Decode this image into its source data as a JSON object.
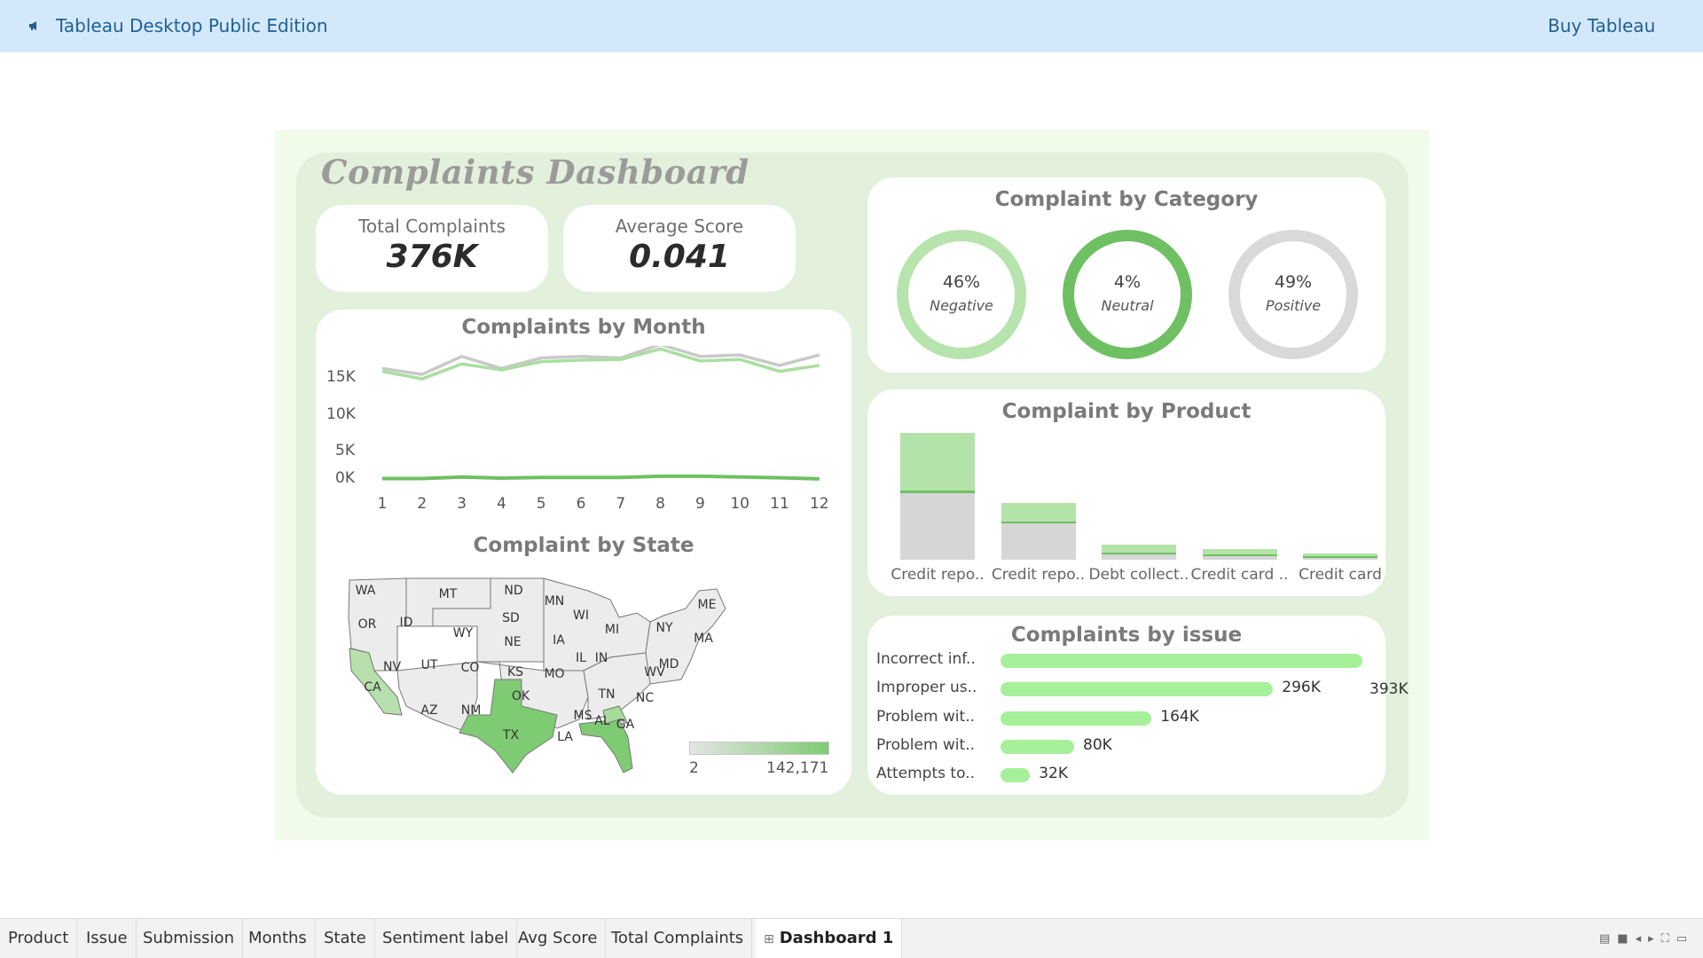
{
  "topbar": {
    "app_icon": "megaphone-icon",
    "title": "Tableau Desktop Public Edition",
    "buy_label": "Buy Tableau"
  },
  "dashboard": {
    "title": "Complaints Dashboard",
    "kpis": {
      "total_label": "Total Complaints",
      "total_value": "376K",
      "avg_label": "Average Score",
      "avg_value": "0.041"
    },
    "category": {
      "title": "Complaint by Category",
      "items": [
        {
          "pct": "46%",
          "label": "Negative",
          "color": "#b7e3ad"
        },
        {
          "pct": "4%",
          "label": "Neutral",
          "color": "#6fbf63"
        },
        {
          "pct": "49%",
          "label": "Positive",
          "color": "#d9d9d9"
        }
      ]
    },
    "month": {
      "title": "Complaints by Month"
    },
    "product": {
      "title": "Complaint by Product"
    },
    "state": {
      "title": "Complaint by State",
      "legend_min": "2",
      "legend_max": "142,171",
      "states": [
        "WA",
        "MT",
        "ND",
        "MN",
        "OR",
        "ID",
        "WY",
        "SD",
        "WI",
        "MI",
        "NY",
        "ME",
        "MA",
        "NV",
        "UT",
        "CO",
        "NE",
        "IA",
        "IL",
        "IN",
        "MD",
        "CA",
        "KS",
        "MO",
        "WV",
        "AZ",
        "NM",
        "OK",
        "TN",
        "NC",
        "TX",
        "MS",
        "AL",
        "GA",
        "LA"
      ]
    },
    "issues": {
      "title": "Complaints by issue"
    }
  },
  "chart_data": [
    {
      "type": "line",
      "title": "Complaints by Month",
      "x": [
        1,
        2,
        3,
        4,
        5,
        6,
        7,
        8,
        9,
        10,
        11,
        12
      ],
      "ylim": [
        0,
        18000
      ],
      "yticks": [
        "15K",
        "10K",
        "5K",
        "0K"
      ],
      "series": [
        {
          "color": "#c9c9c9",
          "values": [
            15000,
            14200,
            16600,
            15000,
            16400,
            16600,
            16400,
            18200,
            16600,
            16800,
            15400,
            16800
          ]
        },
        {
          "color": "#a9df9f",
          "values": [
            14600,
            13600,
            15600,
            14800,
            15900,
            16100,
            16200,
            17600,
            16000,
            16200,
            14600,
            15400
          ]
        },
        {
          "color": "#6fbf63",
          "values": [
            300,
            300,
            500,
            350,
            450,
            450,
            450,
            600,
            600,
            500,
            400,
            250
          ]
        }
      ]
    },
    {
      "type": "bar",
      "title": "Complaint by Product",
      "categories": [
        "Credit repo..",
        "Credit repo..",
        "Debt collect..",
        "Credit card ..",
        "Credit card"
      ],
      "series": [
        {
          "color": "#d6d6d6",
          "values": [
            73000,
            40000,
            6000,
            4000,
            2000
          ]
        },
        {
          "color": "#6fbf63",
          "values": [
            3000,
            2000,
            800,
            500,
            300
          ]
        },
        {
          "color": "#b3e3a8",
          "values": [
            63000,
            20000,
            9000,
            5500,
            2500
          ]
        }
      ]
    },
    {
      "type": "bar",
      "title": "Complaints by issue",
      "categories": [
        "Incorrect inf..",
        "Improper us..",
        "Problem wit..",
        "Problem wit..",
        "Attempts to.."
      ],
      "values": [
        393000,
        296000,
        164000,
        80000,
        32000
      ],
      "value_labels": [
        "393K",
        "296K",
        "164K",
        "80K",
        "32K"
      ]
    }
  ],
  "tabs": [
    {
      "label": "Product"
    },
    {
      "label": "Issue"
    },
    {
      "label": "Submission"
    },
    {
      "label": "Months"
    },
    {
      "label": "State"
    },
    {
      "label": "Sentiment label"
    },
    {
      "label": "Avg Score"
    },
    {
      "label": "Total Complaints"
    },
    {
      "label": "Dashboard 1",
      "active": true,
      "icon": "dashboard-icon"
    }
  ]
}
